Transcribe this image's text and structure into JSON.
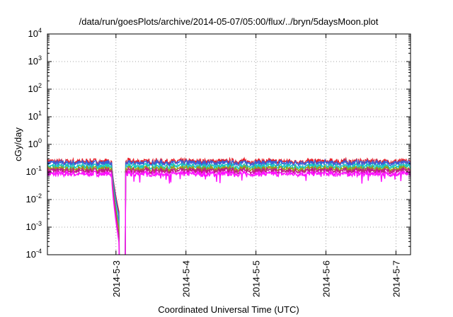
{
  "chart_data": {
    "type": "line",
    "title": "/data/run/goesPlots/archive/2014-05-07/05:00/flux/../bryn/5daysMoon.plot",
    "xlabel": "Coordinated Universal Time (UTC)",
    "ylabel": "cGy/day",
    "y_scale": "log",
    "ylim": [
      0.0001,
      10000
    ],
    "y_ticks": [
      {
        "base": "10",
        "exp": "-4",
        "value": 0.0001
      },
      {
        "base": "10",
        "exp": "-3",
        "value": 0.001
      },
      {
        "base": "10",
        "exp": "-2",
        "value": 0.01
      },
      {
        "base": "10",
        "exp": "-1",
        "value": 0.1
      },
      {
        "base": "10",
        "exp": "0",
        "value": 1
      },
      {
        "base": "10",
        "exp": "1",
        "value": 10
      },
      {
        "base": "10",
        "exp": "2",
        "value": 100
      },
      {
        "base": "10",
        "exp": "3",
        "value": 1000
      },
      {
        "base": "10",
        "exp": "4",
        "value": 10000
      }
    ],
    "xlim": [
      "2014-05-02T00:30",
      "2014-05-07T05:00"
    ],
    "x_ticks": [
      "2014-5-3",
      "2014-5-4",
      "2014-5-5",
      "2014-5-6",
      "2014-5-7"
    ],
    "grid": true,
    "series": [
      {
        "color": "#e8202a",
        "base_level": 0.24
      },
      {
        "color": "#3a5fd8",
        "base_level": 0.21
      },
      {
        "color": "#18c8c0",
        "base_level": 0.16
      },
      {
        "color": "#9a9a18",
        "base_level": 0.13
      },
      {
        "color": "#c0188c",
        "base_level": 0.11
      },
      {
        "color": "#ff10ff",
        "base_level": 0.085
      }
    ],
    "dropout": {
      "decay_start": "2014-05-02T22:30",
      "gap_start": "2014-05-03T01:10",
      "recover": "2014-05-03T03:20",
      "end_values": [
        0.003,
        0.0022,
        0.0012,
        0.00075,
        0.0004,
        0.00022
      ]
    }
  }
}
